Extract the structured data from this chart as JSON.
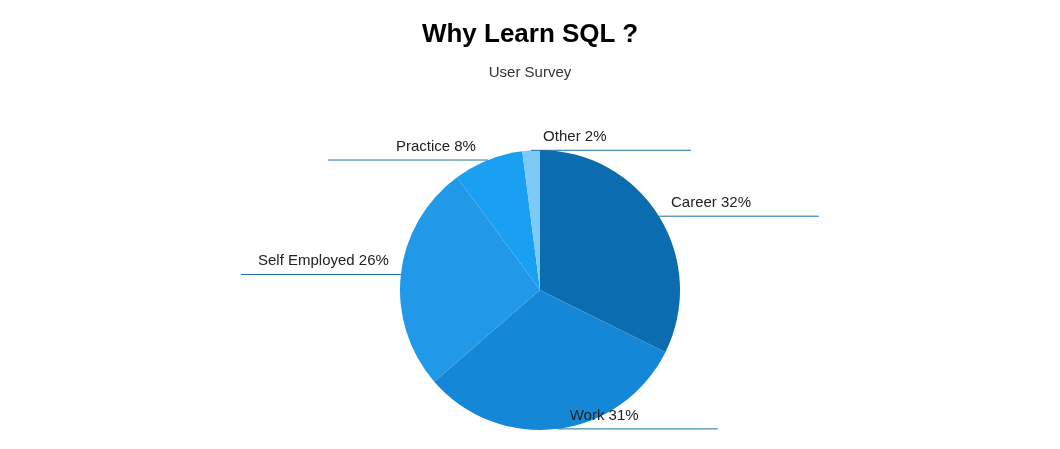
{
  "chart_data": {
    "type": "pie",
    "title": "Why Learn SQL ?",
    "subtitle": "User Survey",
    "categories": [
      "Career",
      "Work",
      "Self Employed",
      "Practice",
      "Other"
    ],
    "values": [
      32,
      31,
      26,
      8,
      2
    ],
    "colors": [
      "#0b6db0",
      "#1487d6",
      "#2198e8",
      "#1aa0f2",
      "#7ccaf6"
    ],
    "value_labels": [
      "32%",
      "31%",
      "26%",
      "8%",
      "2%"
    ]
  }
}
